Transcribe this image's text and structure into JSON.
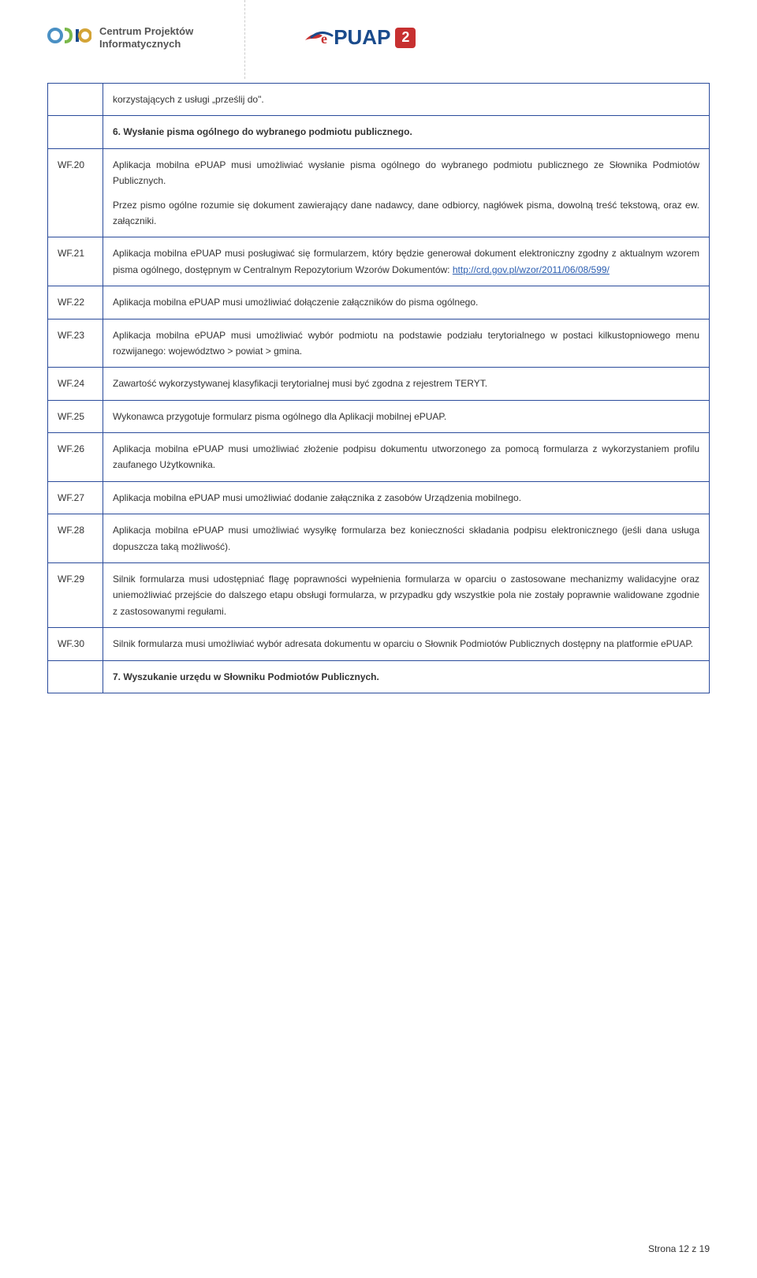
{
  "header": {
    "cpi_logo_text": "Centrum Projektów\nInformatycznych",
    "epuap_text": "PUAP",
    "epuap_badge": "2"
  },
  "rows": [
    {
      "type": "full",
      "text": "korzystających z usługi „prześlij do\"."
    },
    {
      "type": "full_bold",
      "text": "6. Wysłanie pisma ogólnego do wybranego podmiotu publicznego."
    },
    {
      "type": "row",
      "id": "WF.20",
      "paras": [
        "Aplikacja mobilna ePUAP musi umożliwiać wysłanie pisma ogólnego do wybranego podmiotu publicznego ze Słownika Podmiotów Publicznych.",
        "Przez pismo ogólne rozumie się dokument zawierający dane nadawcy, dane odbiorcy, nagłówek pisma, dowolną treść tekstową, oraz ew. załączniki."
      ]
    },
    {
      "type": "row",
      "id": "WF.21",
      "paras": [
        "Aplikacja mobilna ePUAP musi posługiwać się formularzem, który będzie generował dokument elektroniczny zgodny z aktualnym wzorem pisma ogólnego, dostępnym w Centralnym Repozytorium Wzorów Dokumentów: "
      ],
      "link": "http://crd.gov.pl/wzor/2011/06/08/599/"
    },
    {
      "type": "row",
      "id": "WF.22",
      "paras": [
        "Aplikacja mobilna ePUAP musi umożliwiać dołączenie załączników do pisma ogólnego."
      ]
    },
    {
      "type": "row",
      "id": "WF.23",
      "paras": [
        "Aplikacja mobilna ePUAP musi umożliwiać wybór podmiotu na podstawie podziału terytorialnego w postaci kilkustopniowego menu rozwijanego: województwo > powiat > gmina."
      ]
    },
    {
      "type": "row",
      "id": "WF.24",
      "paras": [
        "Zawartość wykorzystywanej klasyfikacji terytorialnej musi być zgodna z rejestrem TERYT."
      ]
    },
    {
      "type": "row",
      "id": "WF.25",
      "paras": [
        "Wykonawca przygotuje formularz pisma ogólnego dla Aplikacji mobilnej ePUAP."
      ]
    },
    {
      "type": "row",
      "id": "WF.26",
      "paras": [
        "Aplikacja mobilna ePUAP musi umożliwiać złożenie podpisu dokumentu utworzonego za pomocą formularza z wykorzystaniem profilu zaufanego Użytkownika."
      ]
    },
    {
      "type": "row",
      "id": "WF.27",
      "paras": [
        "Aplikacja mobilna ePUAP musi umożliwiać dodanie załącznika z zasobów Urządzenia mobilnego."
      ]
    },
    {
      "type": "row",
      "id": "WF.28",
      "paras": [
        "Aplikacja mobilna ePUAP musi umożliwiać wysyłkę formularza bez konieczności składania podpisu elektronicznego (jeśli dana usługa dopuszcza taką możliwość)."
      ]
    },
    {
      "type": "row",
      "id": "WF.29",
      "paras": [
        "Silnik formularza musi udostępniać flagę poprawności wypełnienia formularza w oparciu o zastosowane mechanizmy walidacyjne oraz uniemożliwiać przejście do dalszego etapu obsługi formularza, w przypadku gdy wszystkie pola nie zostały poprawnie walidowane zgodnie z zastosowanymi regułami."
      ]
    },
    {
      "type": "row",
      "id": "WF.30",
      "paras": [
        "Silnik formularza musi umożliwiać wybór adresata dokumentu w oparciu o Słownik Podmiotów Publicznych dostępny na platformie ePUAP."
      ]
    },
    {
      "type": "full_bold",
      "text": "7. Wyszukanie urzędu w Słowniku Podmiotów Publicznych."
    }
  ],
  "footer": "Strona 12 z 19",
  "colors": {
    "border": "#2a4b9b",
    "link": "#2a5db0",
    "badge_bg": "#c73030",
    "cpi_blue": "#4a90c4"
  }
}
